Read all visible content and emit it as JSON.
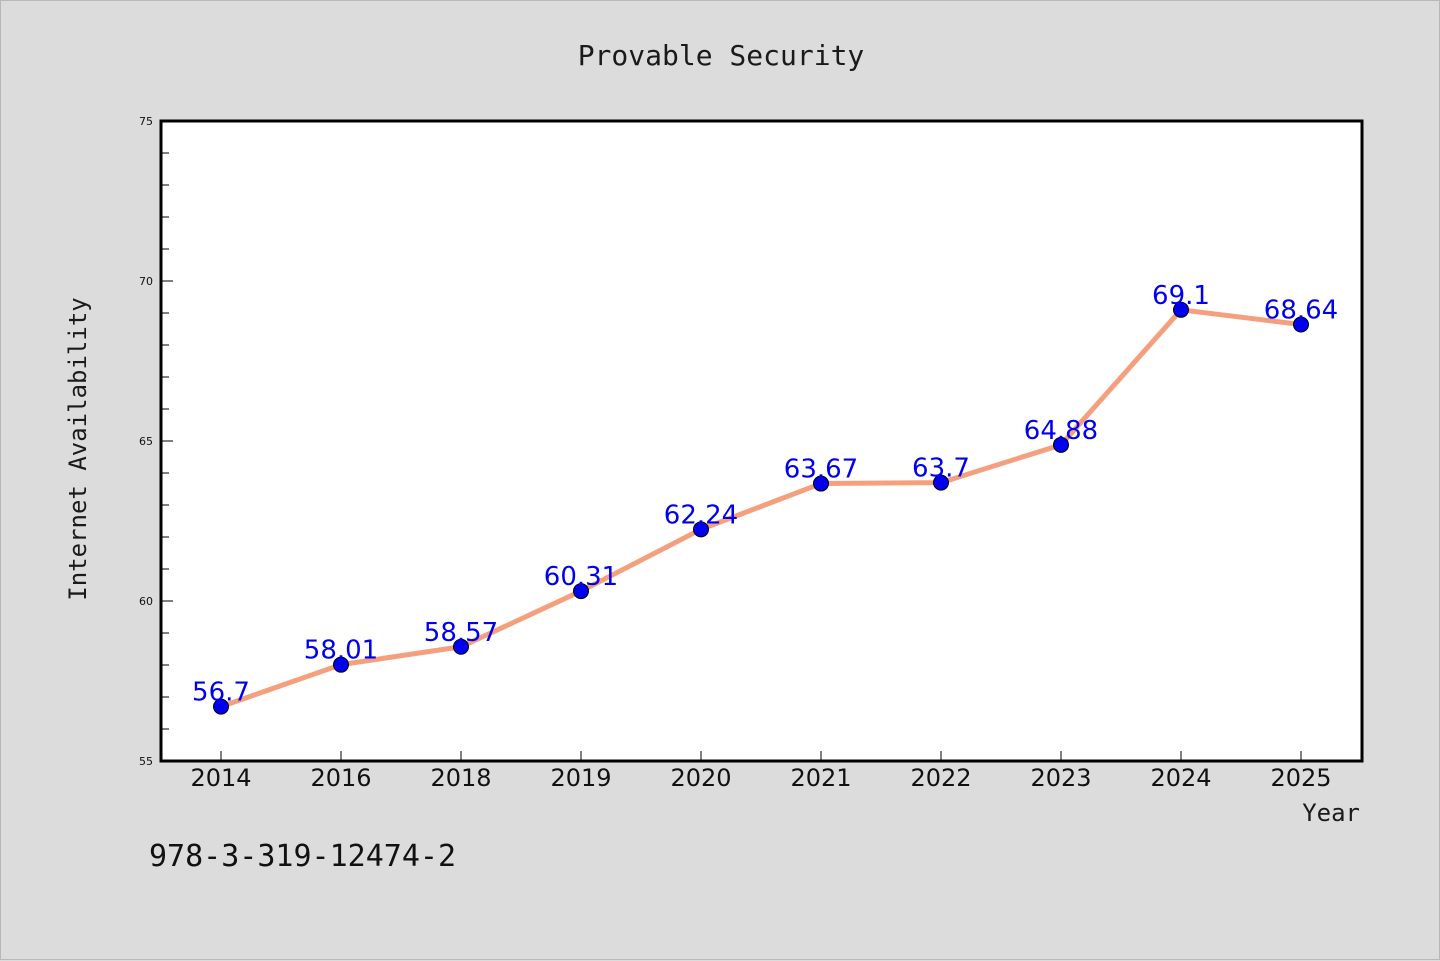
{
  "chart_data": {
    "type": "line",
    "title": "Provable Security",
    "xlabel": "Year",
    "ylabel": "Internet Availability",
    "categories": [
      "2014",
      "2016",
      "2018",
      "2019",
      "2020",
      "2021",
      "2022",
      "2023",
      "2024",
      "2025"
    ],
    "series": [
      {
        "values": [
          56.7,
          58.01,
          58.57,
          60.31,
          62.24,
          63.67,
          63.7,
          64.88,
          69.1,
          68.64
        ]
      }
    ],
    "data_labels": [
      "56.7",
      "58.01",
      "58.57",
      "60.31",
      "62.24",
      "63.67",
      "63.7",
      "64.88",
      "69.1",
      "68.64"
    ],
    "ylim": [
      55,
      75
    ],
    "yticks": [
      "55",
      "60",
      "65",
      "70",
      "75"
    ],
    "grid": false,
    "colors": {
      "line": "#f4a07f",
      "marker": "#0000ee",
      "label": "#0000ee",
      "background": "#dcdcdc",
      "plot_background": "#ffffff"
    }
  },
  "footnote": "978-3-319-12474-2"
}
